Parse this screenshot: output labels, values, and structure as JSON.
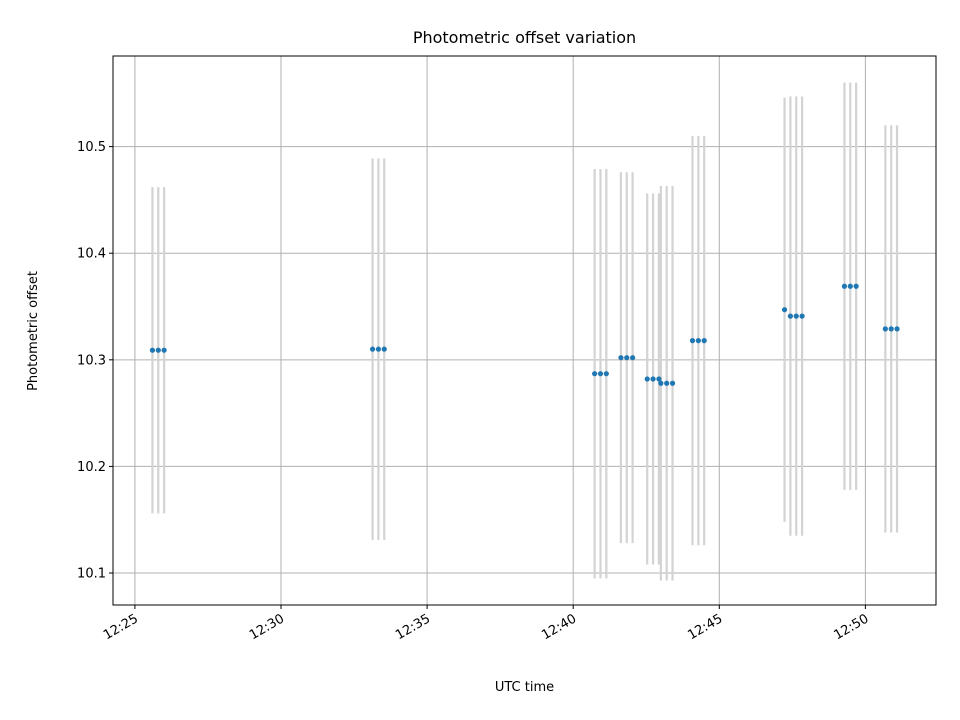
{
  "chart_data": {
    "type": "scatter",
    "title": "Photometric offset variation",
    "xlabel": "UTC time",
    "ylabel": "Photometric offset",
    "x_ticks": [
      "12:25",
      "12:30",
      "12:35",
      "12:40",
      "12:45",
      "12:50"
    ],
    "y_ticks": [
      10.1,
      10.2,
      10.3,
      10.4,
      10.5
    ],
    "xlim": [
      "12:24:15",
      "12:52:25"
    ],
    "ylim": [
      10.07,
      10.585
    ],
    "grid": true,
    "point_color": "#1f77b4",
    "errorbar_color": "#d3d3d3",
    "points": [
      {
        "t": "12:25:36",
        "y": 10.309,
        "err": 0.153
      },
      {
        "t": "12:25:48",
        "y": 10.309,
        "err": 0.153
      },
      {
        "t": "12:26:00",
        "y": 10.309,
        "err": 0.153
      },
      {
        "t": "12:33:08",
        "y": 10.31,
        "err": 0.179
      },
      {
        "t": "12:33:20",
        "y": 10.31,
        "err": 0.179
      },
      {
        "t": "12:33:32",
        "y": 10.31,
        "err": 0.179
      },
      {
        "t": "12:40:44",
        "y": 10.287,
        "err": 0.192
      },
      {
        "t": "12:40:56",
        "y": 10.287,
        "err": 0.192
      },
      {
        "t": "12:41:08",
        "y": 10.287,
        "err": 0.192
      },
      {
        "t": "12:41:38",
        "y": 10.302,
        "err": 0.174
      },
      {
        "t": "12:41:50",
        "y": 10.302,
        "err": 0.174
      },
      {
        "t": "12:42:02",
        "y": 10.302,
        "err": 0.174
      },
      {
        "t": "12:42:32",
        "y": 10.282,
        "err": 0.174
      },
      {
        "t": "12:42:44",
        "y": 10.282,
        "err": 0.174
      },
      {
        "t": "12:42:56",
        "y": 10.282,
        "err": 0.174
      },
      {
        "t": "12:43:00",
        "y": 10.278,
        "err": 0.185
      },
      {
        "t": "12:43:12",
        "y": 10.278,
        "err": 0.185
      },
      {
        "t": "12:43:24",
        "y": 10.278,
        "err": 0.185
      },
      {
        "t": "12:44:05",
        "y": 10.318,
        "err": 0.192
      },
      {
        "t": "12:44:17",
        "y": 10.318,
        "err": 0.192
      },
      {
        "t": "12:44:29",
        "y": 10.318,
        "err": 0.192
      },
      {
        "t": "12:47:14",
        "y": 10.347,
        "err": 0.199
      },
      {
        "t": "12:47:26",
        "y": 10.341,
        "err": 0.206
      },
      {
        "t": "12:47:38",
        "y": 10.341,
        "err": 0.206
      },
      {
        "t": "12:47:50",
        "y": 10.341,
        "err": 0.206
      },
      {
        "t": "12:49:17",
        "y": 10.369,
        "err": 0.191
      },
      {
        "t": "12:49:29",
        "y": 10.369,
        "err": 0.191
      },
      {
        "t": "12:49:41",
        "y": 10.369,
        "err": 0.191
      },
      {
        "t": "12:50:41",
        "y": 10.329,
        "err": 0.191
      },
      {
        "t": "12:50:53",
        "y": 10.329,
        "err": 0.191
      },
      {
        "t": "12:51:05",
        "y": 10.329,
        "err": 0.191
      }
    ]
  }
}
